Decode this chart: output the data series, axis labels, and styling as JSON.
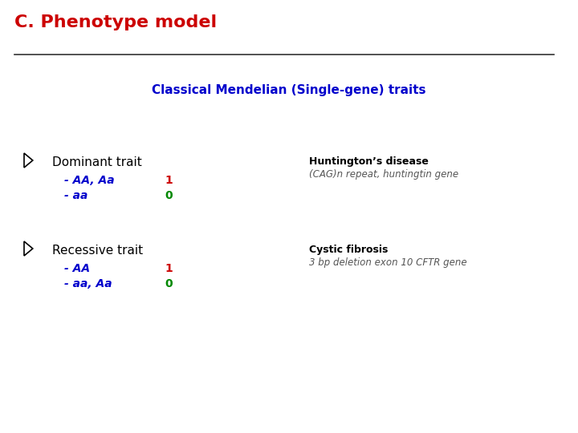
{
  "title": "C. Phenotype model",
  "title_color": "#cc0000",
  "subtitle": "Classical Mendelian (Single-gene) traits",
  "subtitle_color": "#0000cc",
  "bg_color": "#ffffff",
  "section1_header": "Dominant trait",
  "section1_row1_label": "- AA, Aa",
  "section1_row1_value": "1",
  "section1_row2_label": "- aa",
  "section1_row2_value": "0",
  "section1_note_line1": "Huntington’s disease",
  "section1_note_line2": "(CAG)n repeat, huntingtin gene",
  "section2_header": "Recessive trait",
  "section2_row1_label": "- AA",
  "section2_row1_value": "1",
  "section2_row2_label": "- aa, Aa",
  "section2_row2_value": "0",
  "section2_note_line1": "Cystic fibrosis",
  "section2_note_line2": "3 bp deletion exon 10 CFTR gene",
  "label_color": "#0000cc",
  "value1_color": "#cc0000",
  "value0_color": "#008800",
  "header_color": "#000000",
  "note_bold_color": "#000000",
  "note_italic_color": "#555555",
  "title_fontsize": 16,
  "subtitle_fontsize": 11,
  "header_fontsize": 11,
  "row_fontsize": 10,
  "note_fontsize": 9,
  "line_color": "#333333"
}
